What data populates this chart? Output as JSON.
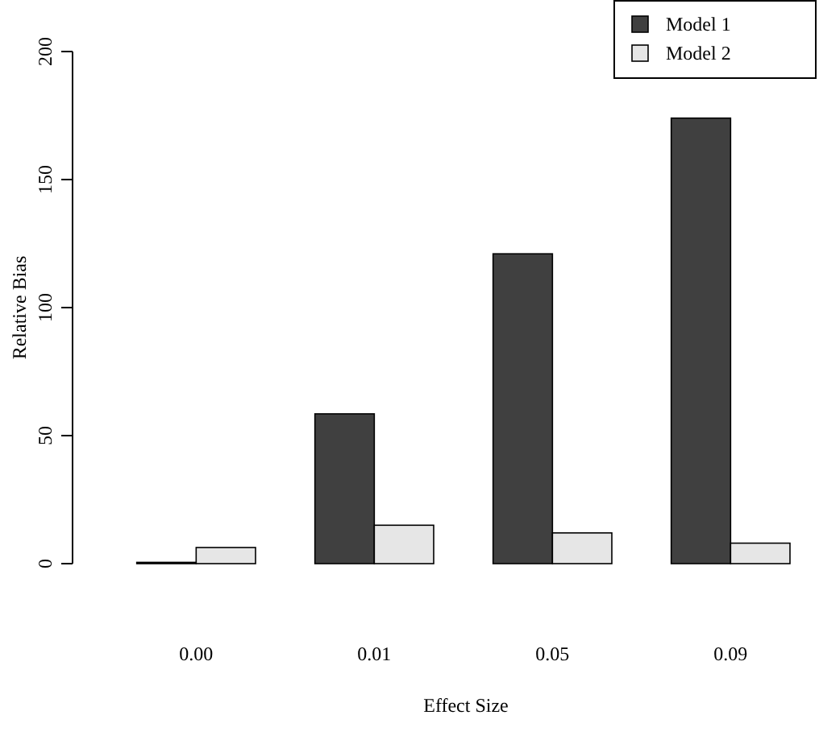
{
  "chart_data": {
    "type": "bar",
    "xlabel": "Effect Size",
    "ylabel": "Relative Bias",
    "categories": [
      "0.00",
      "0.01",
      "0.05",
      "0.09"
    ],
    "series": [
      {
        "name": "Model 1",
        "color": "#404040",
        "values": [
          0.5,
          58.5,
          121,
          174
        ]
      },
      {
        "name": "Model 2",
        "color": "#e6e6e6",
        "values": [
          6.3,
          15,
          12,
          8
        ]
      }
    ],
    "ylim": [
      0,
      200
    ],
    "yticks": [
      0,
      50,
      100,
      150,
      200
    ],
    "legend": "top right",
    "grid": false
  }
}
